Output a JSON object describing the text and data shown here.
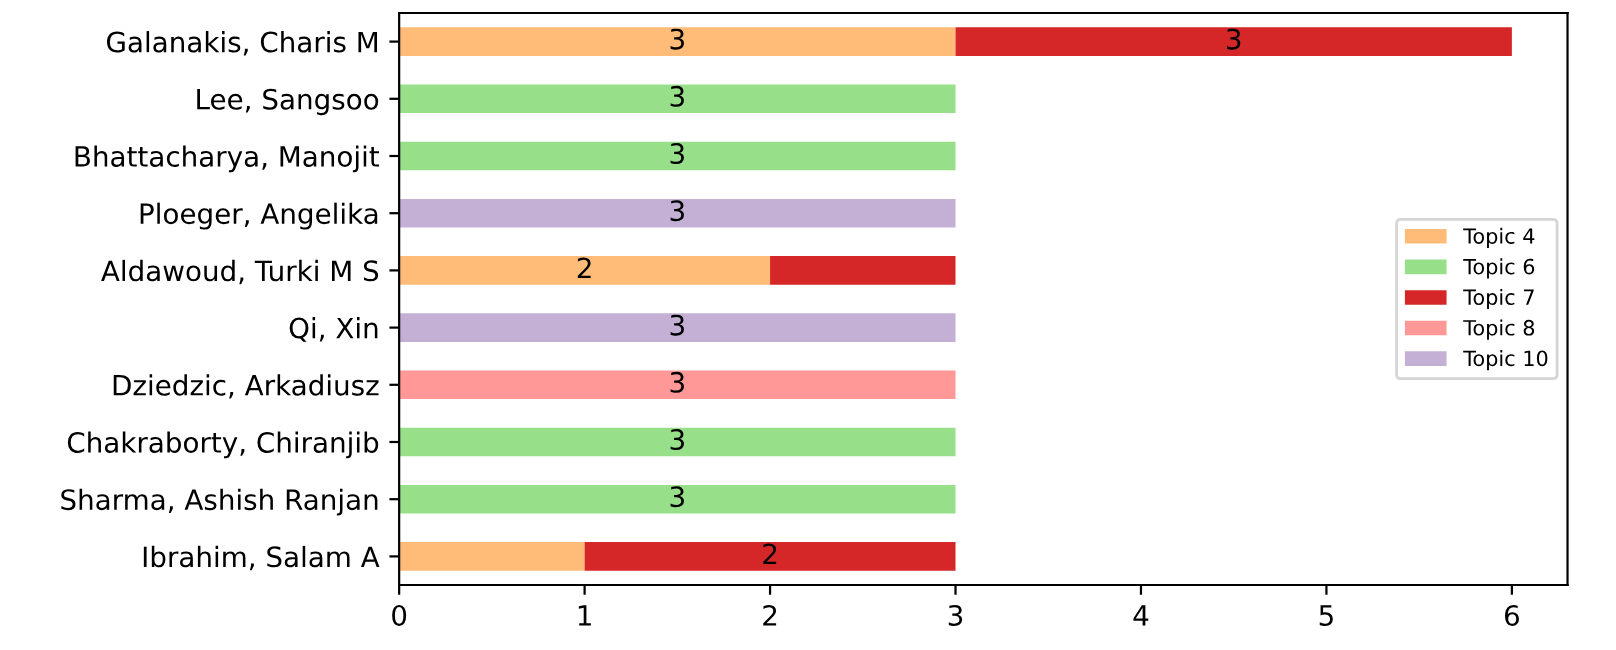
{
  "chart_data": {
    "type": "bar",
    "orientation": "horizontal",
    "stacked": true,
    "categories": [
      "Galanakis, Charis M",
      "Lee, Sangsoo",
      "Bhattacharya, Manojit",
      "Ploeger, Angelika",
      "Aldawoud, Turki M S",
      "Qi, Xin",
      "Dziedzic, Arkadiusz",
      "Chakraborty, Chiranjib",
      "Sharma, Ashish Ranjan",
      "Ibrahim, Salam A"
    ],
    "series": [
      {
        "name": "Topic 4",
        "color": "#ffbb78",
        "values": [
          3,
          null,
          null,
          null,
          2,
          null,
          null,
          null,
          null,
          1
        ],
        "value_labels": [
          "3",
          null,
          null,
          null,
          "2",
          null,
          null,
          null,
          null,
          null
        ]
      },
      {
        "name": "Topic 6",
        "color": "#98df8a",
        "values": [
          null,
          3,
          3,
          null,
          null,
          null,
          null,
          3,
          3,
          null
        ],
        "value_labels": [
          null,
          "3",
          "3",
          null,
          null,
          null,
          null,
          "3",
          "3",
          null
        ]
      },
      {
        "name": "Topic 7",
        "color": "#d62728",
        "values": [
          3,
          null,
          null,
          null,
          1,
          null,
          null,
          null,
          null,
          2
        ],
        "value_labels": [
          "3",
          null,
          null,
          null,
          null,
          null,
          null,
          null,
          null,
          "2"
        ]
      },
      {
        "name": "Topic 8",
        "color": "#ff9896",
        "values": [
          null,
          null,
          null,
          null,
          null,
          null,
          3,
          null,
          null,
          null
        ],
        "value_labels": [
          null,
          null,
          null,
          null,
          null,
          null,
          "3",
          null,
          null,
          null
        ]
      },
      {
        "name": "Topic 10",
        "color": "#c5b0d5",
        "values": [
          null,
          null,
          null,
          3,
          null,
          3,
          null,
          null,
          null,
          null
        ],
        "value_labels": [
          null,
          null,
          null,
          "3",
          null,
          "3",
          null,
          null,
          null,
          null
        ]
      }
    ],
    "xlim": [
      0,
      6.3
    ],
    "xticks": [
      0,
      1,
      2,
      3,
      4,
      5,
      6
    ],
    "grid": false,
    "legend": "center right"
  }
}
